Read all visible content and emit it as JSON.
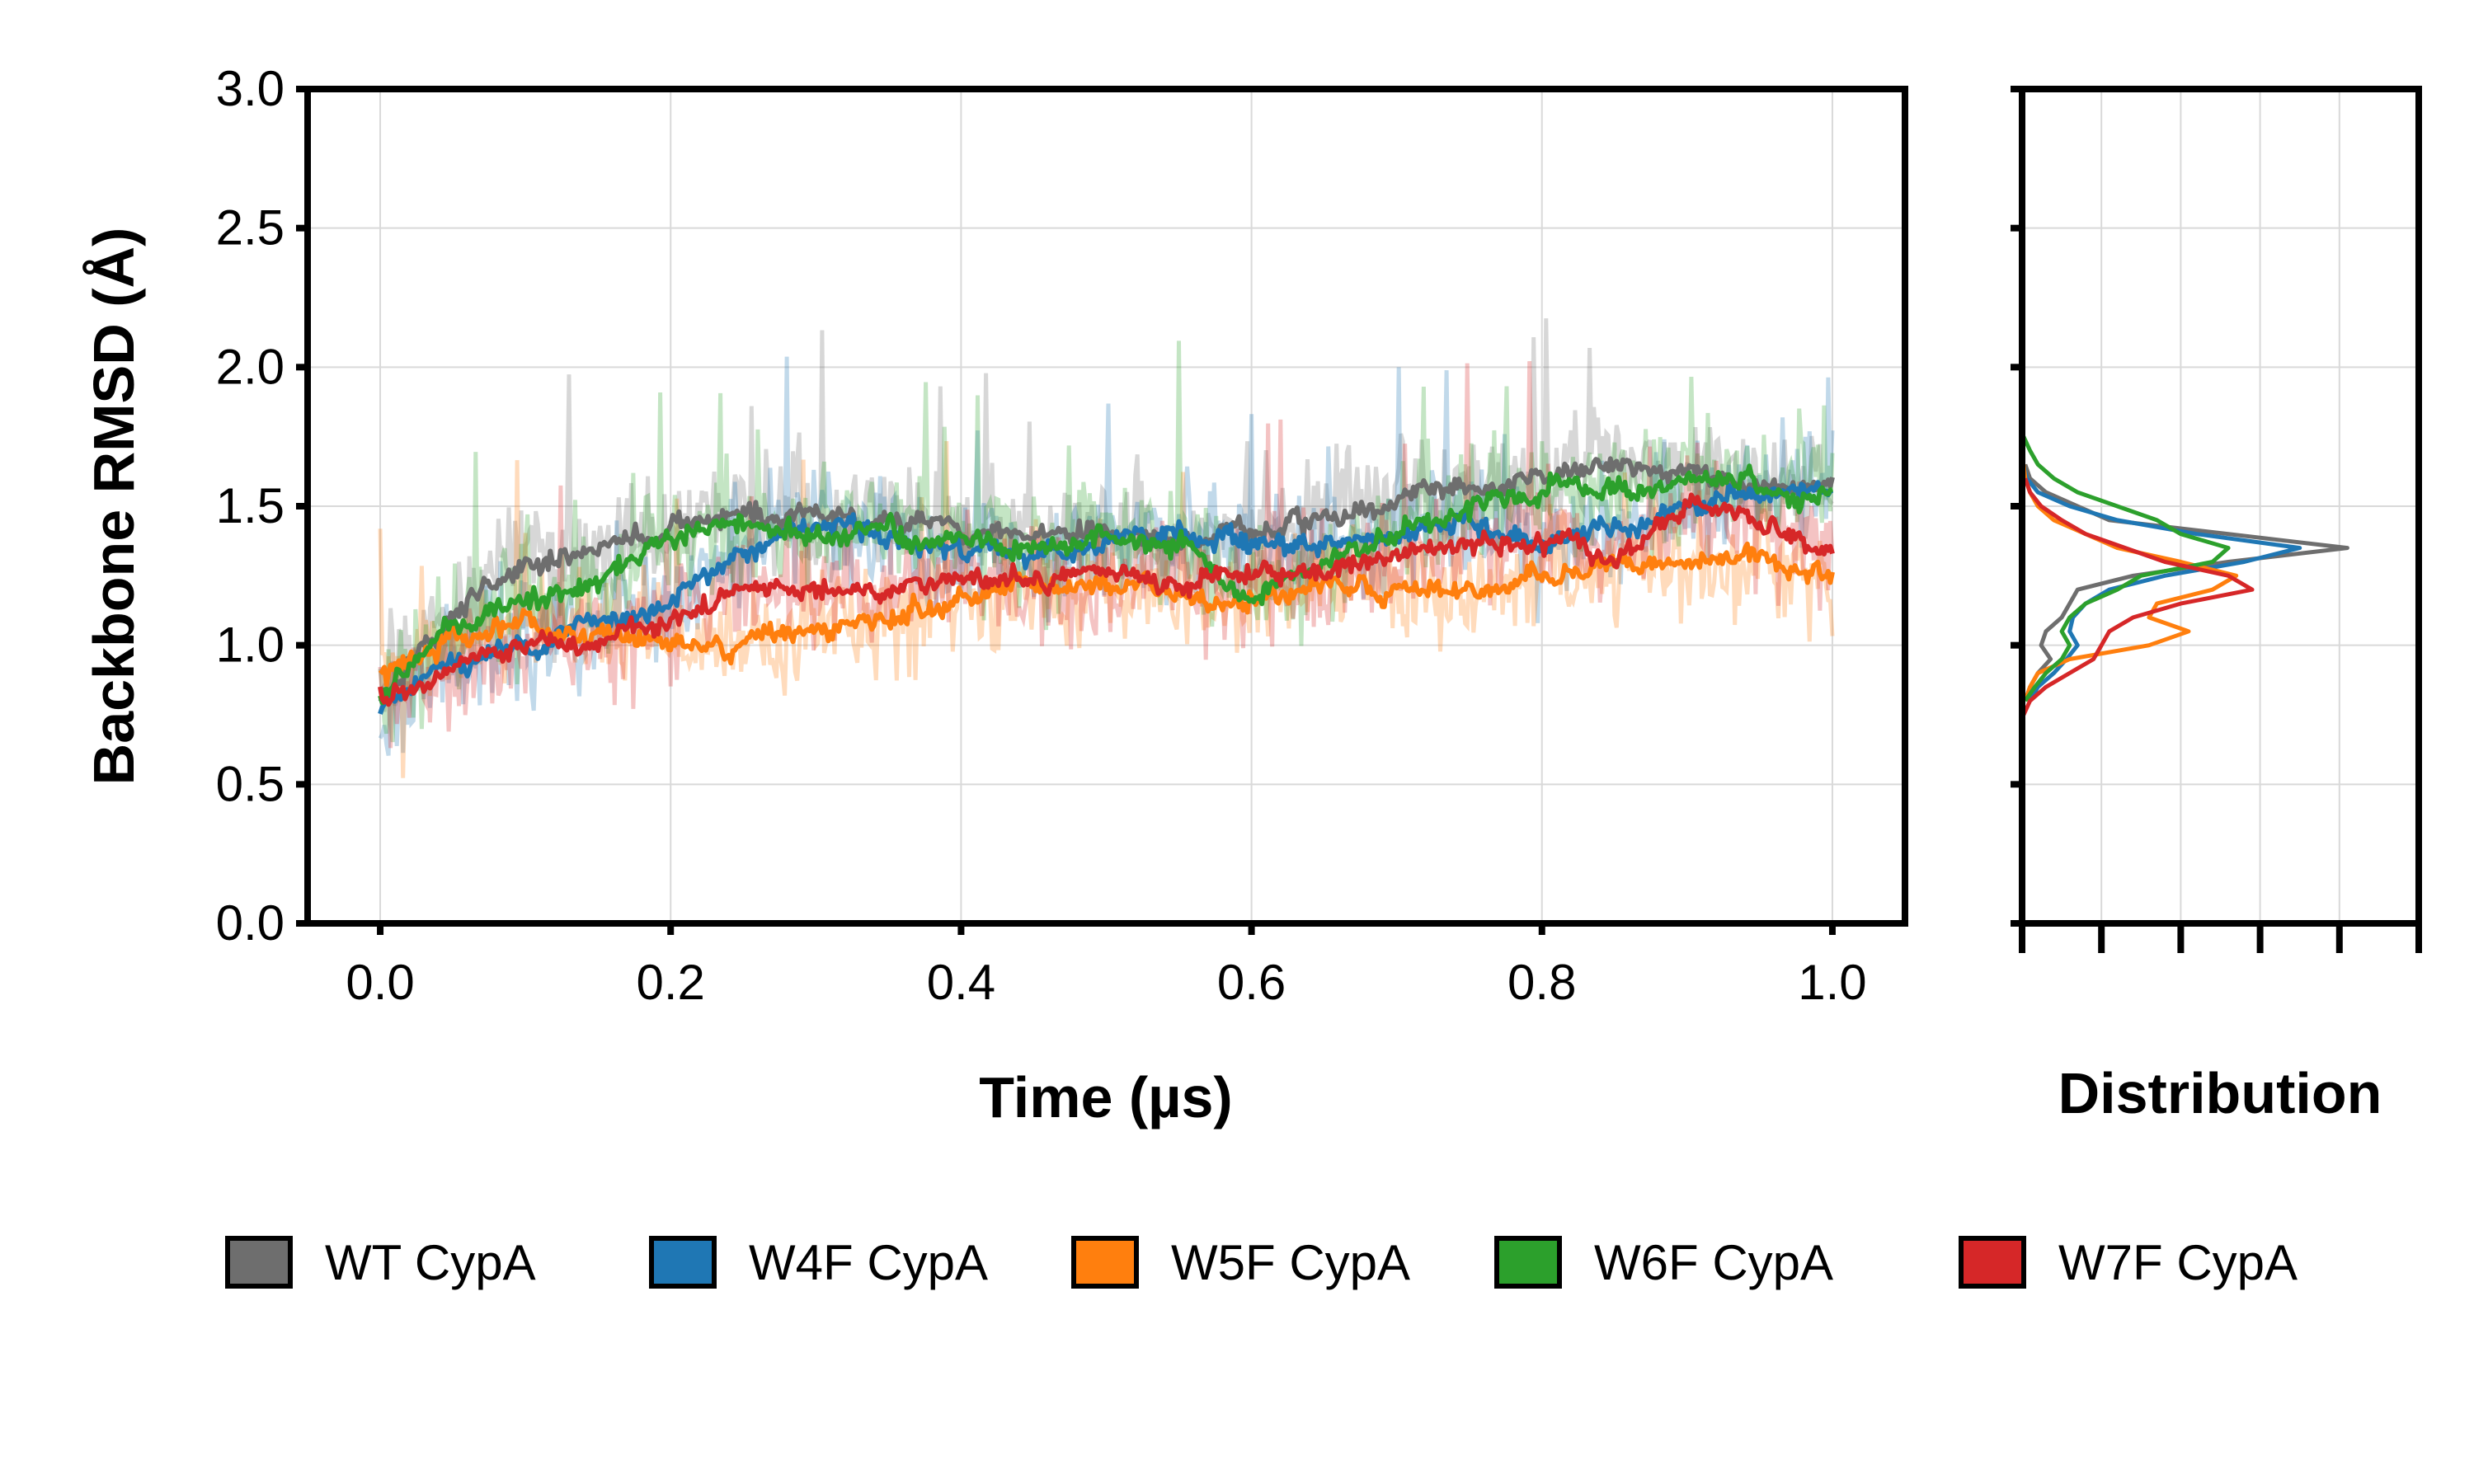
{
  "chart_data": [
    {
      "type": "line",
      "xlabel": "Time (µs)",
      "ylabel": "Backbone RMSD (Å)",
      "xlim": [
        -0.05,
        1.05
      ],
      "ylim": [
        0.0,
        3.0
      ],
      "xticks": [
        "0.0",
        "0.2",
        "0.4",
        "0.6",
        "0.8",
        "1.0"
      ],
      "yticks": [
        "0.0",
        "0.5",
        "1.0",
        "1.5",
        "2.0",
        "2.5",
        "3.0"
      ],
      "grid": true,
      "legend_position": "bottom",
      "series": [
        {
          "name": "WT CypA",
          "color": "#6e6e6e",
          "x": [
            0.0,
            0.05,
            0.1,
            0.15,
            0.2,
            0.25,
            0.3,
            0.35,
            0.4,
            0.45,
            0.5,
            0.55,
            0.6,
            0.65,
            0.7,
            0.75,
            0.8,
            0.85,
            0.9,
            0.95,
            1.0
          ],
          "y": [
            0.82,
            1.15,
            1.3,
            1.35,
            1.42,
            1.48,
            1.45,
            1.45,
            1.42,
            1.4,
            1.42,
            1.4,
            1.4,
            1.48,
            1.52,
            1.55,
            1.6,
            1.65,
            1.62,
            1.6,
            1.58
          ]
        },
        {
          "name": "W4F CypA",
          "color": "#1f77b4",
          "x": [
            0.0,
            0.05,
            0.1,
            0.15,
            0.2,
            0.25,
            0.3,
            0.35,
            0.4,
            0.45,
            0.5,
            0.55,
            0.6,
            0.65,
            0.7,
            0.75,
            0.8,
            0.85,
            0.9,
            0.95,
            1.0
          ],
          "y": [
            0.78,
            0.95,
            1.0,
            1.05,
            1.15,
            1.35,
            1.45,
            1.4,
            1.35,
            1.32,
            1.36,
            1.4,
            1.38,
            1.35,
            1.4,
            1.45,
            1.35,
            1.4,
            1.5,
            1.55,
            1.58
          ]
        },
        {
          "name": "W5F CypA",
          "color": "#ff7f0e",
          "x": [
            0.0,
            0.05,
            0.1,
            0.15,
            0.2,
            0.25,
            0.3,
            0.35,
            0.4,
            0.45,
            0.5,
            0.55,
            0.6,
            0.65,
            0.7,
            0.75,
            0.8,
            0.85,
            0.9,
            0.95,
            1.0
          ],
          "y": [
            0.88,
            1.05,
            1.08,
            1.05,
            1.02,
            1.0,
            1.05,
            1.1,
            1.18,
            1.2,
            1.22,
            1.18,
            1.15,
            1.2,
            1.22,
            1.18,
            1.25,
            1.3,
            1.28,
            1.3,
            1.25
          ]
        },
        {
          "name": "W6F CypA",
          "color": "#2ca02c",
          "x": [
            0.0,
            0.05,
            0.1,
            0.15,
            0.2,
            0.25,
            0.3,
            0.35,
            0.4,
            0.45,
            0.5,
            0.55,
            0.6,
            0.65,
            0.7,
            0.75,
            0.8,
            0.85,
            0.9,
            0.95,
            1.0
          ],
          "y": [
            0.82,
            1.05,
            1.15,
            1.22,
            1.38,
            1.42,
            1.38,
            1.4,
            1.38,
            1.36,
            1.38,
            1.4,
            1.15,
            1.3,
            1.42,
            1.48,
            1.55,
            1.58,
            1.6,
            1.58,
            1.56
          ]
        },
        {
          "name": "W7F CypA",
          "color": "#d62728",
          "x": [
            0.0,
            0.05,
            0.1,
            0.15,
            0.2,
            0.25,
            0.3,
            0.35,
            0.4,
            0.45,
            0.5,
            0.55,
            0.6,
            0.65,
            0.7,
            0.75,
            0.8,
            0.85,
            0.9,
            0.95,
            1.0
          ],
          "y": [
            0.82,
            0.92,
            0.98,
            1.02,
            1.1,
            1.22,
            1.2,
            1.2,
            1.25,
            1.22,
            1.25,
            1.22,
            1.25,
            1.28,
            1.3,
            1.38,
            1.4,
            1.32,
            1.5,
            1.45,
            1.35
          ]
        }
      ]
    },
    {
      "type": "line",
      "xlabel": "Distribution",
      "ylim": [
        0.0,
        3.0
      ],
      "grid": true,
      "series": [
        {
          "name": "WT CypA",
          "color": "#6e6e6e",
          "y": [
            0.8,
            0.85,
            0.9,
            0.95,
            1.0,
            1.05,
            1.1,
            1.15,
            1.2,
            1.25,
            1.3,
            1.35,
            1.4,
            1.45,
            1.5,
            1.55,
            1.6,
            1.65
          ],
          "density": [
            0.02,
            0.05,
            0.1,
            0.18,
            0.12,
            0.15,
            0.25,
            0.3,
            0.35,
            0.7,
            1.3,
            2.05,
            1.3,
            0.55,
            0.35,
            0.15,
            0.05,
            0.02
          ]
        },
        {
          "name": "W4F CypA",
          "color": "#1f77b4",
          "y": [
            0.8,
            0.85,
            0.9,
            0.95,
            1.0,
            1.05,
            1.1,
            1.15,
            1.2,
            1.25,
            1.3,
            1.35,
            1.4,
            1.45,
            1.5,
            1.55,
            1.6,
            1.65
          ],
          "density": [
            0.05,
            0.1,
            0.2,
            0.28,
            0.35,
            0.3,
            0.32,
            0.4,
            0.55,
            0.9,
            1.4,
            1.75,
            1.1,
            0.6,
            0.3,
            0.1,
            0.03,
            0.01
          ]
        },
        {
          "name": "W5F CypA",
          "color": "#ff7f0e",
          "y": [
            0.8,
            0.85,
            0.9,
            0.95,
            1.0,
            1.05,
            1.1,
            1.15,
            1.2,
            1.25,
            1.3,
            1.35,
            1.4,
            1.45,
            1.5,
            1.55,
            1.6,
            1.65
          ],
          "density": [
            0.02,
            0.05,
            0.1,
            0.3,
            0.8,
            1.05,
            0.8,
            0.85,
            1.2,
            1.35,
            1.0,
            0.6,
            0.4,
            0.2,
            0.1,
            0.05,
            0.02,
            0.01
          ]
        },
        {
          "name": "W6F CypA",
          "color": "#2ca02c",
          "y": [
            0.8,
            0.85,
            0.9,
            0.95,
            1.0,
            1.05,
            1.1,
            1.15,
            1.2,
            1.25,
            1.3,
            1.35,
            1.4,
            1.45,
            1.5,
            1.55,
            1.6,
            1.65,
            1.7,
            1.75
          ],
          "density": [
            0.02,
            0.08,
            0.15,
            0.25,
            0.3,
            0.25,
            0.3,
            0.4,
            0.6,
            0.75,
            1.2,
            1.3,
            1.0,
            0.85,
            0.6,
            0.35,
            0.2,
            0.1,
            0.05,
            0.01
          ]
        },
        {
          "name": "W7F CypA",
          "color": "#d62728",
          "y": [
            0.75,
            0.8,
            0.85,
            0.9,
            0.95,
            1.0,
            1.05,
            1.1,
            1.15,
            1.2,
            1.25,
            1.3,
            1.35,
            1.4,
            1.45,
            1.5,
            1.55,
            1.6
          ],
          "density": [
            0.01,
            0.05,
            0.15,
            0.3,
            0.45,
            0.5,
            0.55,
            0.7,
            1.0,
            1.45,
            1.3,
            0.9,
            0.65,
            0.4,
            0.25,
            0.12,
            0.05,
            0.02
          ]
        }
      ]
    }
  ],
  "legend": [
    {
      "label": "WT CypA",
      "color": "#6e6e6e"
    },
    {
      "label": "W4F CypA",
      "color": "#1f77b4"
    },
    {
      "label": "W5F CypA",
      "color": "#ff7f0e"
    },
    {
      "label": "W6F CypA",
      "color": "#2ca02c"
    },
    {
      "label": "W7F CypA",
      "color": "#d62728"
    }
  ]
}
